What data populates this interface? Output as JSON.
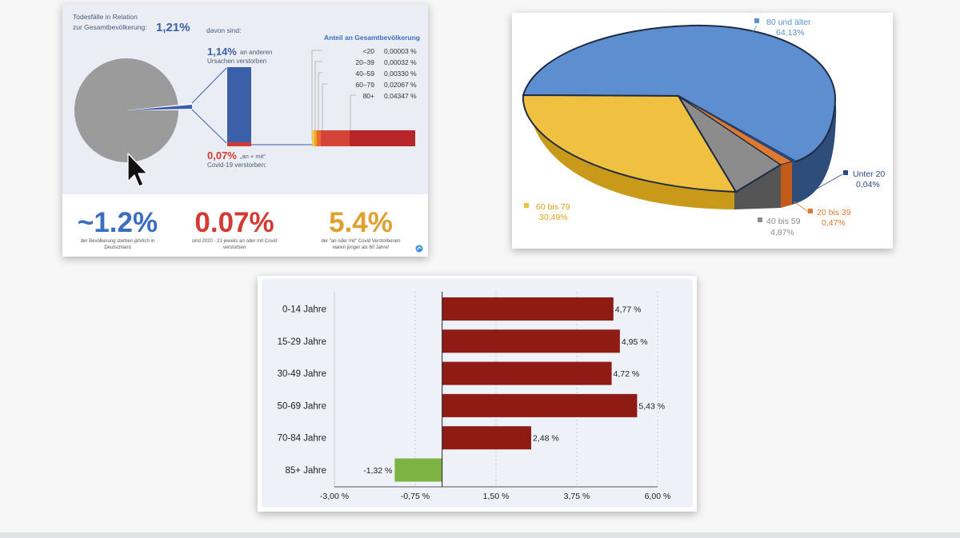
{
  "colors": {
    "blue": "#3b5fa8",
    "red": "#d23a32",
    "orange": "#e0a030",
    "grey_pie": "#9b9b9b",
    "bar_red": "#8e1c14",
    "bar_green": "#7cb342"
  },
  "infographic": {
    "title_line1": "Todesfälle in Relation",
    "title_line2": "zur Gesamtbevölkerung:",
    "title_value": "1,21%",
    "davon": "davon sind:",
    "other_pct": "1,14%",
    "other_line1": "an anderen",
    "other_line2": "Ursachen verstorben",
    "covid_pct": "0,07%",
    "covid_line1": "„an + mit\"",
    "covid_line2": "Covid-19 verstorben:",
    "anteil_title": "Anteil an Gesamtbevölkerung",
    "age_rows": [
      {
        "age": "<20",
        "value": "0,00003 %"
      },
      {
        "age": "20–39",
        "value": "0,00032 %"
      },
      {
        "age": "40–59",
        "value": "0,00330 %"
      },
      {
        "age": "60–79",
        "value": "0,02067 %"
      },
      {
        "age": "80+",
        "value": "0,04347 %"
      }
    ],
    "stats": [
      {
        "big": "~1.2%",
        "line1": "der Bevölkerung sterben jährlich in",
        "line2": "Deutschland"
      },
      {
        "big": "0.07%",
        "line1": "sind 2020 - 21 jeweils an oder mit Covid",
        "line2": "verstorben"
      },
      {
        "big": "5.4%",
        "line1": "der \"an oder mit\" Covid Verstorbenen",
        "line2": "waren jünger als 60 Jahre!"
      }
    ]
  },
  "chart_data": [
    {
      "type": "pie",
      "title": "",
      "labels": [
        "80 und älter",
        "60 bis 79",
        "40 bis 59",
        "20 bis 39",
        "Unter 20"
      ],
      "values": [
        64.13,
        30.49,
        4.87,
        0.47,
        0.04
      ],
      "value_labels": [
        "64,13%",
        "30,49%",
        "4,87%",
        "0,47%",
        "0,04%"
      ],
      "colors": [
        "#5d8fd0",
        "#f0c040",
        "#8c8c8c",
        "#e07a2e",
        "#2b4a8a"
      ]
    },
    {
      "type": "bar",
      "orientation": "horizontal",
      "title": "",
      "categories": [
        "0-14 Jahre",
        "15-29 Jahre",
        "30-49 Jahre",
        "50-69 Jahre",
        "70-84 Jahre",
        "85+ Jahre"
      ],
      "values": [
        4.77,
        4.95,
        4.72,
        5.43,
        2.48,
        -1.32
      ],
      "value_labels": [
        "4,77 %",
        "4,95 %",
        "4,72 %",
        "5,43 %",
        "2,48 %",
        "-1,32 %"
      ],
      "xlim": [
        -3,
        6
      ],
      "xticks": [
        -3,
        -0.75,
        1.5,
        3.75,
        6
      ],
      "xtick_labels": [
        "-3,00 %",
        "-0,75 %",
        "1,50 %",
        "3,75 %",
        "6,00 %"
      ],
      "xlabel": "",
      "ylabel": ""
    }
  ]
}
